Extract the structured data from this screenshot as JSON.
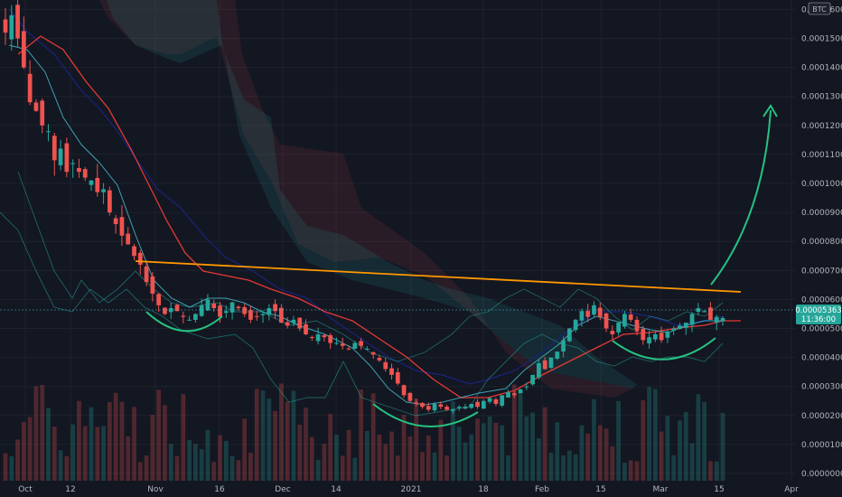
{
  "chart_data": {
    "type": "candlestick",
    "currency_badge": "BTC",
    "ylim": [
      0,
      0.000162
    ],
    "y_ticks": [
      "0.00016000",
      "0.00015000",
      "0.00014000",
      "0.00013000",
      "0.00012000",
      "0.00011000",
      "0.00010000",
      "0.00009000",
      "0.00008000",
      "0.00007000",
      "0.00006000",
      "0.00005000",
      "0.00004000",
      "0.00003000",
      "0.00002000",
      "0.00001000",
      "0.00000000"
    ],
    "x_ticks": [
      "Oct",
      "12",
      "Nov",
      "16",
      "Dec",
      "14",
      "2021",
      "18",
      "Feb",
      "15",
      "Mar",
      "15",
      "Apr"
    ],
    "last_price_label": "0.00005363",
    "countdown_label": "11:36:00",
    "last_price": 5.363e-05,
    "ohlc_close": [
      0.000152,
      0.000158,
      0.00015,
      0.00014,
      0.000128,
      0.000125,
      0.00012,
      0.000118,
      0.000108,
      0.000112,
      0.000104,
      0.000107,
      0.000104,
      0.000102,
      0.000101,
      9.7e-05,
      9.8e-05,
      9e-05,
      8.6e-05,
      8.2e-05,
      7.9e-05,
      7.5e-05,
      7.2e-05,
      6.6e-05,
      6.2e-05,
      5.8e-05,
      5.5e-05,
      5.7e-05,
      5.6e-05,
      5.4e-05,
      5.3e-05,
      5.5e-05,
      5.8e-05,
      6e-05,
      5.7e-05,
      5.4e-05,
      5.6e-05,
      5.9e-05,
      5.7e-05,
      5.5e-05,
      5.3e-05,
      5.4e-05,
      5.5e-05,
      5.7e-05,
      5.6e-05,
      5.2e-05,
      5.1e-05,
      5.3e-05,
      5e-05,
      4.8e-05,
      4.7e-05,
      4.8e-05,
      4.7e-05,
      4.5e-05,
      4.5e-05,
      4.4e-05,
      4.3e-05,
      4.5e-05,
      4.4e-05,
      4.3e-05,
      4.1e-05,
      3.9e-05,
      3.6e-05,
      3.4e-05,
      3.1e-05,
      2.7e-05,
      2.5e-05,
      2.4e-05,
      2.3e-05,
      2.2e-05,
      2.4e-05,
      2.3e-05,
      2.2e-05,
      2.2e-05,
      2.3e-05,
      2.3e-05,
      2.4e-05,
      2.3e-05,
      2.5e-05,
      2.6e-05,
      2.4e-05,
      2.7e-05,
      2.8e-05,
      2.7e-05,
      2.9e-05,
      3e-05,
      3.4e-05,
      3.8e-05,
      3.6e-05,
      4e-05,
      4.2e-05,
      4.6e-05,
      5e-05,
      5.3e-05,
      5.6e-05,
      5.4e-05,
      5.8e-05,
      5.4e-05,
      5e-05,
      4.8e-05,
      5.2e-05,
      5.5e-05,
      5.3e-05,
      4.9e-05,
      4.6e-05,
      4.7e-05,
      4.8e-05,
      4.6e-05,
      4.9e-05,
      5e-05,
      5.1e-05,
      5.2e-05,
      5.5e-05,
      5.7e-05,
      5.6e-05,
      5.3e-05,
      5.4e-05,
      5.36e-05
    ]
  }
}
